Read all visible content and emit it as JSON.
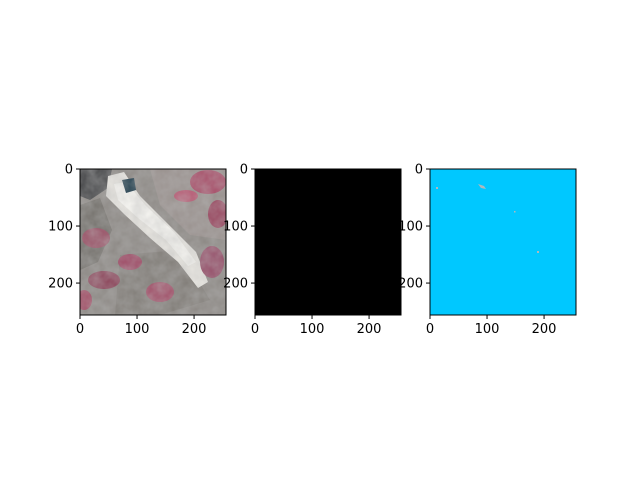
{
  "figure": {
    "background": "#ffffff"
  },
  "chart_data": [
    {
      "type": "image",
      "title": "",
      "xlabel": "",
      "ylabel": "",
      "image_shape": [
        256,
        256
      ],
      "xlim": [
        0,
        256
      ],
      "ylim": [
        256,
        0
      ],
      "xticks": [
        0,
        100,
        200
      ],
      "yticks": [
        0,
        100,
        200
      ],
      "xtick_labels": [
        "0",
        "100",
        "200"
      ],
      "ytick_labels": [
        "0",
        "100",
        "200"
      ],
      "content": "false-colour satellite image: grey terrain with a bright white diagonal streak and magenta-red vegetation patches",
      "colors": {
        "terrain": "#8e8a86",
        "streak": "#e6e4df",
        "vegetation": "#a8506a",
        "water": "#1c3a4a"
      }
    },
    {
      "type": "image",
      "title": "",
      "xlabel": "",
      "ylabel": "",
      "image_shape": [
        256,
        256
      ],
      "xlim": [
        0,
        256
      ],
      "ylim": [
        256,
        0
      ],
      "xticks": [
        0,
        100,
        200
      ],
      "yticks": [
        0,
        100,
        200
      ],
      "xtick_labels": [
        "0",
        "100",
        "200"
      ],
      "ytick_labels": [
        "0",
        "100",
        "200"
      ],
      "content": "uniform black mask",
      "colors": {
        "fill": "#000000"
      }
    },
    {
      "type": "image",
      "title": "",
      "xlabel": "",
      "ylabel": "",
      "image_shape": [
        256,
        256
      ],
      "xlim": [
        0,
        256
      ],
      "ylim": [
        256,
        0
      ],
      "xticks": [
        0,
        100,
        200
      ],
      "yticks": [
        0,
        100,
        200
      ],
      "xtick_labels": [
        "0",
        "100",
        "200"
      ],
      "ytick_labels": [
        "0",
        "100",
        "200"
      ],
      "content": "uniform cyan classification map with a few tiny grey specks",
      "colors": {
        "fill": "#00c8ff",
        "speck": "#b0b8bc"
      }
    }
  ]
}
